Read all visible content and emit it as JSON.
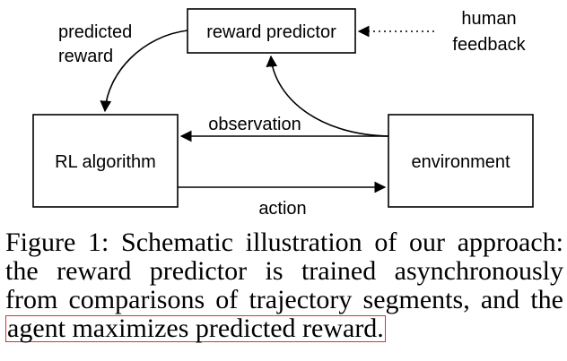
{
  "diagram": {
    "nodes": {
      "reward_predictor": "reward predictor",
      "rl_algorithm": "RL algorithm",
      "environment": "environment"
    },
    "labels": {
      "human": "human",
      "feedback": "feedback",
      "predicted": "predicted",
      "reward": "reward",
      "observation": "observation",
      "action": "action"
    }
  },
  "caption": {
    "line1": "Figure 1: Schematic illustration of our approach:",
    "line2": "the reward predictor is trained asynchronously",
    "line3": "from comparisons of trajectory segments, and the",
    "line4": "agent maximizes predicted reward."
  },
  "colors": {
    "highlight_border": "#e03030"
  }
}
